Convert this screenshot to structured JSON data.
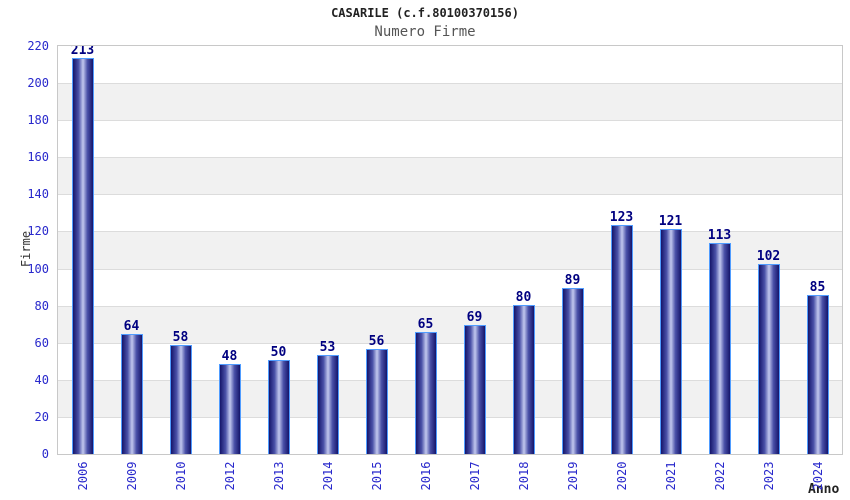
{
  "title": "CASARILE (c.f.80100370156)",
  "subtitle": "Numero Firme",
  "axis": {
    "ylabel": "Firme",
    "xlabel": "Anno"
  },
  "colors": {
    "title": "#222222",
    "subtitle": "#555555",
    "tick_label": "#2929cc",
    "value_label": "#000080",
    "axis_label": "#333333",
    "plot_border": "#c8c8c8",
    "band_white": "#ffffff",
    "band_gray": "#f1f1f1",
    "gridline": "#dcdcdc",
    "bar_border": "#4f9cff",
    "bar_dark": "#15156a",
    "bar_mid": "#4a51a8",
    "bar_light": "#c2c8ee"
  },
  "chart_data": {
    "type": "bar",
    "title": "CASARILE (c.f.80100370156)",
    "subtitle": "Numero Firme",
    "xlabel": "Anno",
    "ylabel": "Firme",
    "categories": [
      "2006",
      "2009",
      "2010",
      "2012",
      "2013",
      "2014",
      "2015",
      "2016",
      "2017",
      "2018",
      "2019",
      "2020",
      "2021",
      "2022",
      "2023",
      "2024"
    ],
    "values": [
      213,
      64,
      58,
      48,
      50,
      53,
      56,
      65,
      69,
      80,
      89,
      123,
      121,
      113,
      102,
      85
    ],
    "ylim": [
      0,
      220
    ],
    "ytick_step": 20,
    "yticks": [
      0,
      20,
      40,
      60,
      80,
      100,
      120,
      140,
      160,
      180,
      200,
      220
    ],
    "grid": "horizontal-bands",
    "legend": "none",
    "value_labels": "above-bars"
  }
}
